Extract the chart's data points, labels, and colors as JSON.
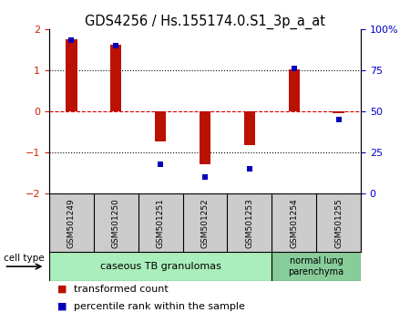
{
  "title": "GDS4256 / Hs.155174.0.S1_3p_a_at",
  "samples": [
    "GSM501249",
    "GSM501250",
    "GSM501251",
    "GSM501252",
    "GSM501253",
    "GSM501254",
    "GSM501255"
  ],
  "transformed_counts": [
    1.75,
    1.62,
    -0.72,
    -1.28,
    -0.82,
    1.02,
    -0.05
  ],
  "percentile_ranks": [
    93,
    90,
    18,
    10,
    15,
    76,
    45
  ],
  "ylim_left": [
    -2,
    2
  ],
  "ylim_right": [
    0,
    100
  ],
  "bar_color": "#bb1100",
  "dot_color": "#0000bb",
  "zero_line_color": "#cc0000",
  "cell_types": [
    {
      "label": "caseous TB granulomas",
      "start": 0,
      "end": 4,
      "color": "#aaeebb"
    },
    {
      "label": "normal lung\nparenchyma",
      "start": 5,
      "end": 6,
      "color": "#88cc99"
    }
  ],
  "legend_bar_label": "transformed count",
  "legend_dot_label": "percentile rank within the sample",
  "cell_type_label": "cell type",
  "tick_color_left": "#cc2200",
  "tick_color_right": "#0000cc",
  "bar_width": 0.25,
  "label_bg_color": "#cccccc",
  "gsm_label_fontsize": 6.5,
  "cell_type_fontsize": 8,
  "legend_fontsize": 8
}
